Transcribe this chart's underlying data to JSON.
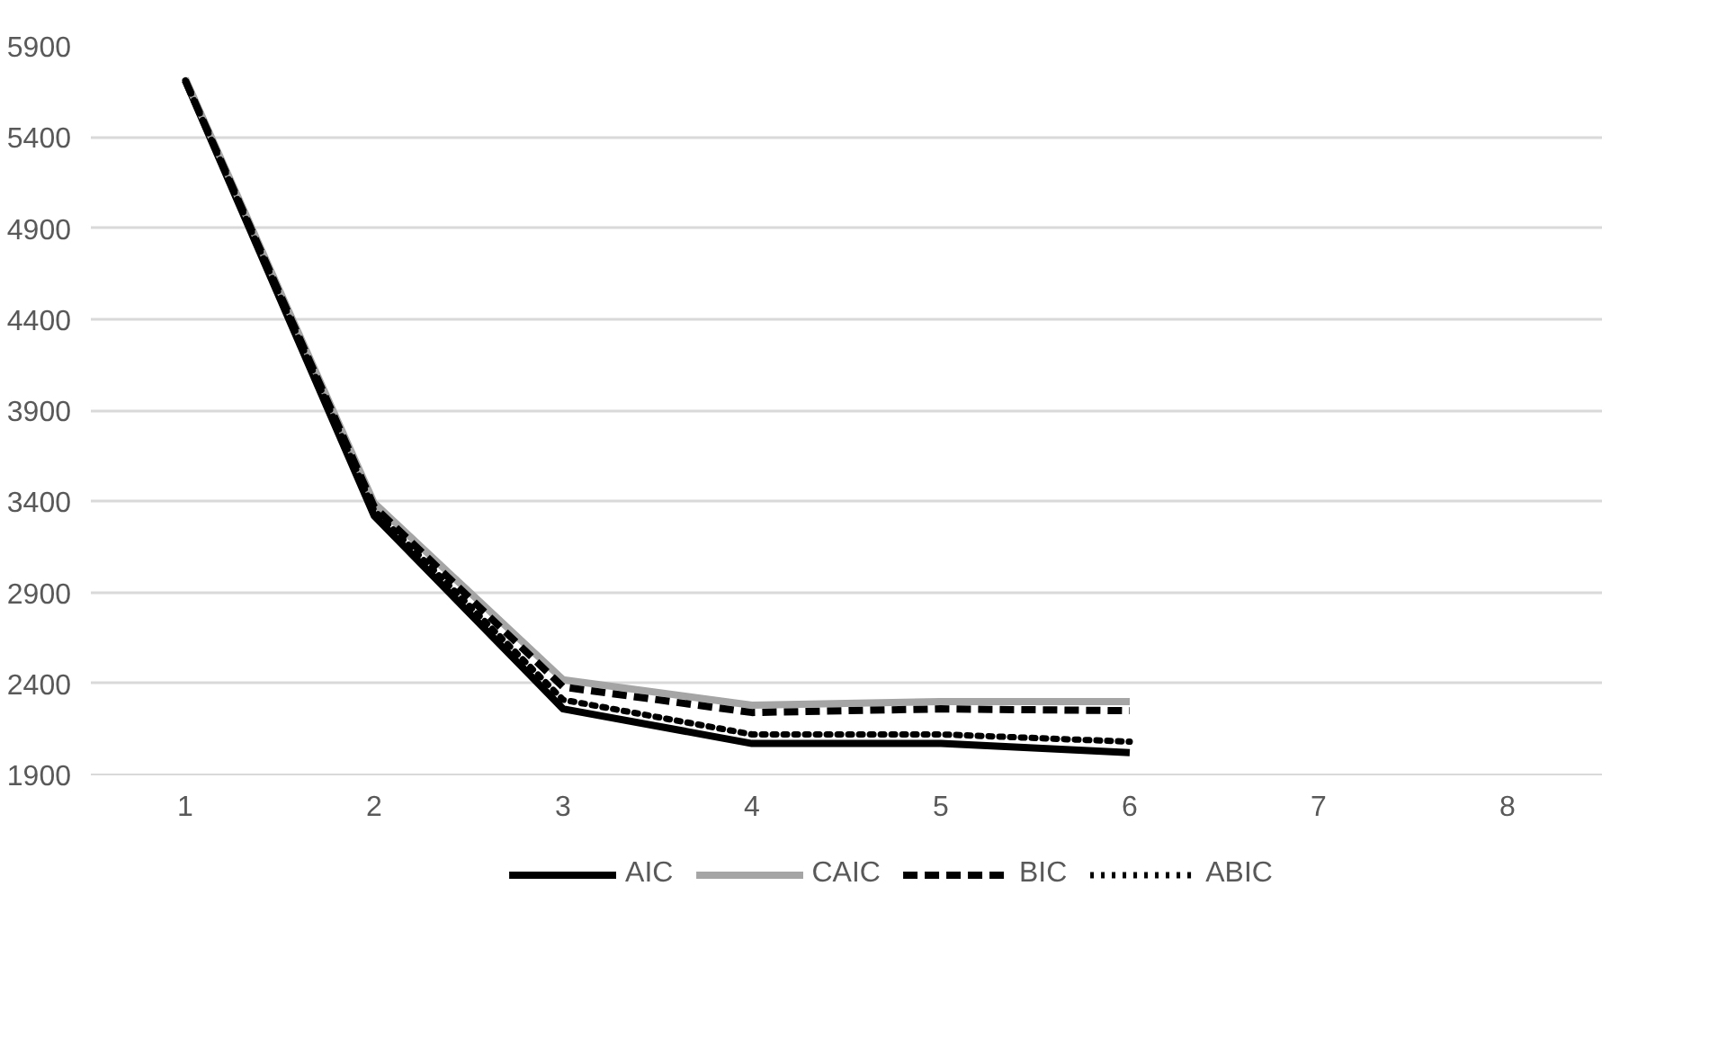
{
  "chart_data": {
    "type": "line",
    "categories": [
      "1",
      "2",
      "3",
      "4",
      "5",
      "6",
      "7",
      "8"
    ],
    "series": [
      {
        "name": "AIC",
        "color": "#000000",
        "line_style": "solid",
        "values": [
          5710,
          3320,
          2260,
          2070,
          2070,
          2020,
          null,
          null
        ]
      },
      {
        "name": "CAIC",
        "color": "#a5a5a5",
        "line_style": "solid",
        "values": [
          5720,
          3390,
          2420,
          2280,
          2300,
          2300,
          null,
          null
        ]
      },
      {
        "name": "BIC",
        "color": "#000000",
        "line_style": "dashed",
        "values": [
          5710,
          3370,
          2380,
          2240,
          2260,
          2250,
          null,
          null
        ]
      },
      {
        "name": "ABIC",
        "color": "#000000",
        "line_style": "dotted",
        "values": [
          5710,
          3350,
          2310,
          2120,
          2120,
          2080,
          null,
          null
        ]
      }
    ],
    "ylim": [
      1900,
      5900
    ],
    "yticks": [
      1900,
      2400,
      2900,
      3400,
      3900,
      4400,
      4900,
      5400,
      5900
    ],
    "grid": "y",
    "legend": "bottom",
    "marker": "none"
  }
}
